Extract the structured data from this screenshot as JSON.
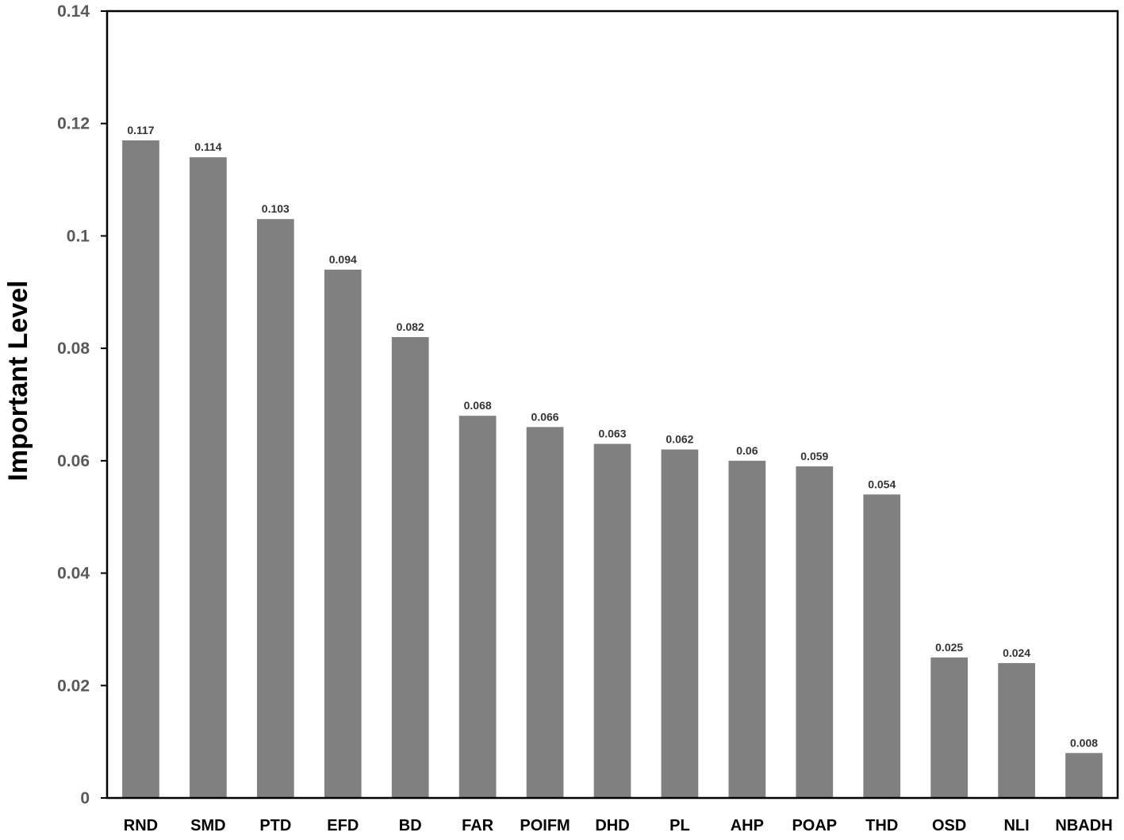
{
  "chart_data": {
    "type": "bar",
    "title": "",
    "xlabel": "",
    "ylabel": "Important Level",
    "categories": [
      "RND",
      "SMD",
      "PTD",
      "EFD",
      "BD",
      "FAR",
      "POIFM",
      "DHD",
      "PL",
      "AHP",
      "POAP",
      "THD",
      "OSD",
      "NLI",
      "NBADH"
    ],
    "values": [
      0.117,
      0.114,
      0.103,
      0.094,
      0.082,
      0.068,
      0.066,
      0.063,
      0.062,
      0.06,
      0.059,
      0.054,
      0.025,
      0.024,
      0.008
    ],
    "data_labels": [
      "0.117",
      "0.114",
      "0.103",
      "0.094",
      "0.082",
      "0.068",
      "0.066",
      "0.063",
      "0.062",
      "0.06",
      "0.059",
      "0.054",
      "0.025",
      "0.024",
      "0.008"
    ],
    "ylim": [
      0,
      0.14
    ],
    "yticks": [
      0,
      0.02,
      0.04,
      0.06,
      0.08,
      0.1,
      0.12,
      0.14
    ],
    "ytick_labels": [
      "0",
      "0.02",
      "0.04",
      "0.06",
      "0.08",
      "0.1",
      "0.12",
      "0.14"
    ],
    "grid": false,
    "legend": "none",
    "colors": {
      "bar": "#808080",
      "axis": "#000000",
      "tick_label": "#595959",
      "data_label": "#333333"
    }
  }
}
